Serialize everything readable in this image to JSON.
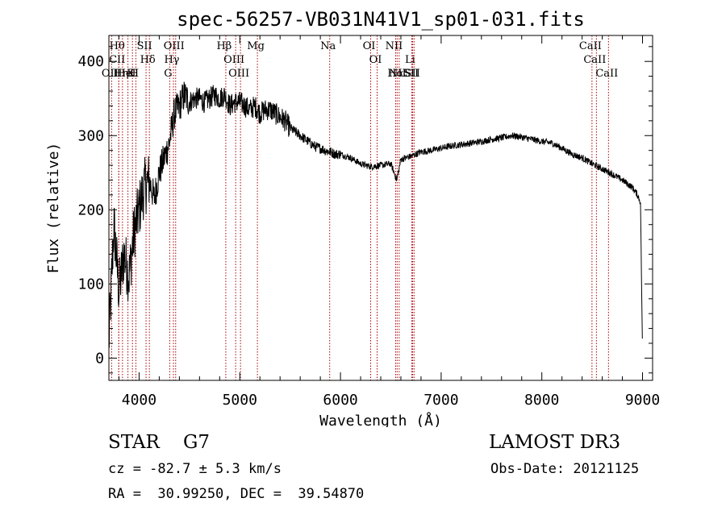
{
  "chart_data": {
    "type": "line",
    "title": "spec-56257-VB031N41V1_sp01-031.fits",
    "xlabel": "Wavelength (Å)",
    "ylabel": "Flux (relative)",
    "xlim": [
      3700,
      9100
    ],
    "ylim": [
      -30,
      435
    ],
    "xticks": [
      4000,
      5000,
      6000,
      7000,
      8000,
      9000
    ],
    "yticks": [
      0,
      100,
      200,
      300,
      400
    ],
    "grid": false,
    "legend": "none",
    "series": [
      {
        "color": "#000000",
        "x": [
          3700,
          3750,
          3800,
          3850,
          3900,
          3950,
          4000,
          4050,
          4100,
          4150,
          4200,
          4250,
          4300,
          4350,
          4400,
          4450,
          4500,
          4550,
          4600,
          4650,
          4700,
          4750,
          4800,
          4850,
          4900,
          4950,
          5000,
          5050,
          5100,
          5150,
          5200,
          5250,
          5300,
          5350,
          5400,
          5450,
          5500,
          5550,
          5600,
          5650,
          5700,
          5750,
          5800,
          5850,
          5900,
          5950,
          6000,
          6100,
          6200,
          6300,
          6400,
          6500,
          6560,
          6600,
          6700,
          6800,
          6900,
          7000,
          7100,
          7200,
          7300,
          7400,
          7500,
          7600,
          7700,
          7800,
          7900,
          8000,
          8100,
          8200,
          8300,
          8400,
          8500,
          8600,
          8700,
          8800,
          8900,
          8950,
          8980,
          9000
        ],
        "y": [
          20,
          180,
          90,
          140,
          110,
          170,
          200,
          230,
          240,
          215,
          250,
          270,
          290,
          330,
          340,
          355,
          345,
          350,
          350,
          345,
          350,
          355,
          350,
          355,
          340,
          345,
          345,
          340,
          335,
          340,
          330,
          335,
          335,
          330,
          325,
          320,
          310,
          305,
          300,
          295,
          290,
          285,
          283,
          280,
          278,
          275,
          275,
          270,
          262,
          258,
          260,
          262,
          240,
          268,
          272,
          278,
          280,
          283,
          286,
          288,
          290,
          292,
          295,
          297,
          300,
          298,
          295,
          292,
          290,
          283,
          275,
          270,
          262,
          255,
          248,
          240,
          230,
          220,
          210,
          5
        ]
      }
    ],
    "line_markers": [
      {
        "label": "Hθ",
        "x": 3798
      },
      {
        "label": "CII",
        "x": 3798
      },
      {
        "label": "OII",
        "x": 3727
      },
      {
        "label": "Hη",
        "x": 3835
      },
      {
        "label": "HeI",
        "x": 3889
      },
      {
        "label": "K",
        "x": 3934
      },
      {
        "label": "H",
        "x": 3968
      },
      {
        "label": "SII",
        "x": 4069
      },
      {
        "label": "Hδ",
        "x": 4102
      },
      {
        "label": "G",
        "x": 4304
      },
      {
        "label": "OIII",
        "x": 4363
      },
      {
        "label": "Hγ",
        "x": 4341
      },
      {
        "label": "Hβ",
        "x": 4861
      },
      {
        "label": "OIII",
        "x": 4959
      },
      {
        "label": "OIII",
        "x": 5007
      },
      {
        "label": "Mg",
        "x": 5175
      },
      {
        "label": "Na",
        "x": 5893
      },
      {
        "label": "OI",
        "x": 6300
      },
      {
        "label": "OI",
        "x": 6364
      },
      {
        "label": "NII",
        "x": 6548
      },
      {
        "label": "Hα",
        "x": 6563
      },
      {
        "label": "NII",
        "x": 6583
      },
      {
        "label": "Li",
        "x": 6708
      },
      {
        "label": "SII",
        "x": 6717
      },
      {
        "label": "SII",
        "x": 6731
      },
      {
        "label": "CaII",
        "x": 8498
      },
      {
        "label": "CaII",
        "x": 8542
      },
      {
        "label": "CaII",
        "x": 8662
      }
    ]
  },
  "info": {
    "star_class": "STAR    G7",
    "survey": "LAMOST DR3",
    "cz": "cz = -82.7 ± 5.3 km/s",
    "obs_date": "Obs-Date: 20121125",
    "radec": "RA =  30.99250, DEC =  39.54870"
  }
}
